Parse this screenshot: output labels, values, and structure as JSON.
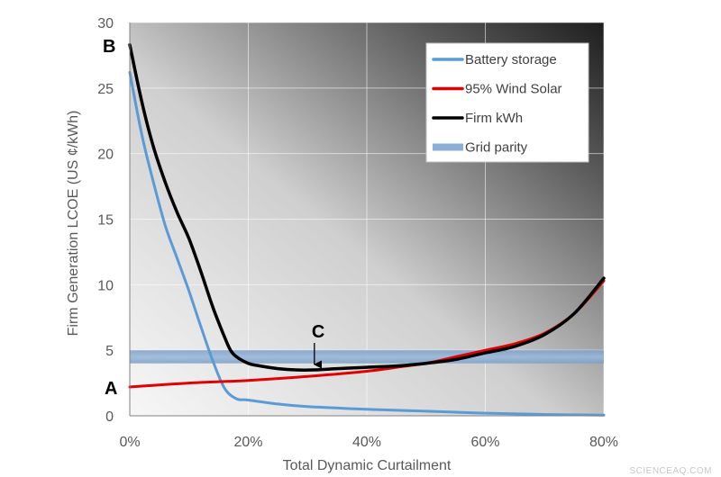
{
  "chart_data": {
    "type": "line",
    "xlabel": "Total Dynamic Curtailment",
    "ylabel": "Firm Generation LCOE (US ¢/kWh)",
    "xlim": [
      0,
      80
    ],
    "ylim": [
      0,
      30
    ],
    "x_ticks": [
      "0%",
      "20%",
      "40%",
      "60%",
      "80%"
    ],
    "y_ticks": [
      "0",
      "5",
      "10",
      "15",
      "20",
      "25",
      "30"
    ],
    "grid": true,
    "legend_position": "top-right",
    "series": [
      {
        "name": "Battery storage",
        "color": "#5b9bd5",
        "x": [
          0,
          2,
          4,
          6,
          8,
          10,
          12,
          14,
          16,
          18,
          20,
          25,
          30,
          40,
          50,
          60,
          70,
          80
        ],
        "y": [
          26.2,
          21.5,
          17.8,
          14.5,
          12.0,
          9.5,
          6.8,
          4.2,
          2.1,
          1.3,
          1.2,
          0.9,
          0.7,
          0.5,
          0.35,
          0.2,
          0.1,
          0.05
        ]
      },
      {
        "name": "95% Wind Solar",
        "color": "#e00000",
        "x": [
          0,
          10,
          20,
          30,
          40,
          45,
          50,
          55,
          60,
          65,
          70,
          75,
          80
        ],
        "y": [
          2.2,
          2.5,
          2.7,
          3.0,
          3.4,
          3.7,
          4.0,
          4.5,
          5.0,
          5.5,
          6.3,
          7.8,
          10.3
        ]
      },
      {
        "name": "Firm kWh",
        "color": "#000000",
        "x": [
          0,
          2,
          4,
          6,
          8,
          10,
          12,
          14,
          16,
          17,
          18,
          20,
          22,
          25,
          28,
          31,
          35,
          40,
          45,
          50,
          55,
          60,
          65,
          70,
          75,
          80
        ],
        "y": [
          28.3,
          24.0,
          20.5,
          17.8,
          15.5,
          13.5,
          11.0,
          8.3,
          6.0,
          5.0,
          4.5,
          4.0,
          3.8,
          3.6,
          3.5,
          3.5,
          3.6,
          3.7,
          3.8,
          4.0,
          4.3,
          4.8,
          5.3,
          6.2,
          7.8,
          10.5
        ]
      },
      {
        "name": "Grid parity",
        "color": "#8eaed4",
        "band": [
          4.0,
          5.0
        ]
      }
    ],
    "annotations": [
      {
        "label": "A",
        "x": 0,
        "y": 2.2
      },
      {
        "label": "B",
        "x": 0,
        "y": 28.3
      },
      {
        "label": "C",
        "x": 31,
        "y": 3.5
      }
    ]
  },
  "watermark": "SCIENCEAQ.COM"
}
